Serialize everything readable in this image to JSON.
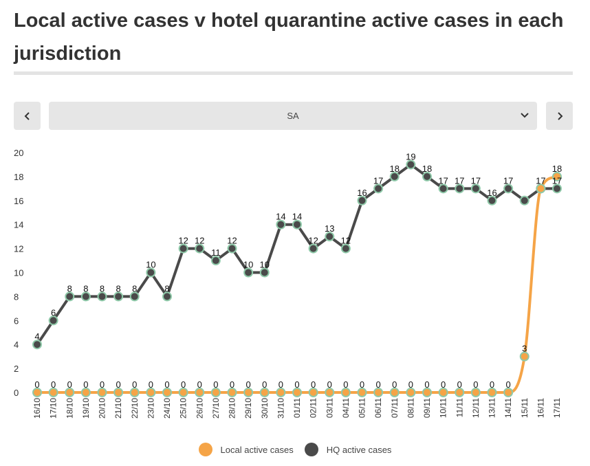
{
  "title": "Local active cases v hotel quarantine active cases in each jurisdiction",
  "selector": {
    "selected": "SA"
  },
  "icons": {
    "prev": "chevron-left-icon",
    "next": "chevron-right-icon",
    "dropdown": "chevron-down-icon"
  },
  "colors": {
    "local": "#f5a447",
    "hq": "#4a4a4a",
    "marker_stroke": "#8fc9a9"
  },
  "legend": {
    "local": "Local active cases",
    "hq": "HQ active cases"
  },
  "chart_data": {
    "type": "line",
    "title": "",
    "xlabel": "",
    "ylabel": "",
    "ylim": [
      0,
      20
    ],
    "yticks": [
      0,
      2,
      4,
      6,
      8,
      10,
      12,
      14,
      16,
      18,
      20
    ],
    "grid": false,
    "legend_position": "bottom",
    "categories": [
      "16/10",
      "17/10",
      "18/10",
      "19/10",
      "20/10",
      "21/10",
      "22/10",
      "23/10",
      "24/10",
      "25/10",
      "26/10",
      "27/10",
      "28/10",
      "29/10",
      "30/10",
      "31/10",
      "01/11",
      "02/11",
      "03/11",
      "04/11",
      "05/11",
      "06/11",
      "07/11",
      "08/11",
      "09/11",
      "10/11",
      "11/11",
      "12/11",
      "13/11",
      "14/11",
      "15/11",
      "16/11",
      "17/11"
    ],
    "series": [
      {
        "name": "Local active cases",
        "values": [
          0,
          0,
          0,
          0,
          0,
          0,
          0,
          0,
          0,
          0,
          0,
          0,
          0,
          0,
          0,
          0,
          0,
          0,
          0,
          0,
          0,
          0,
          0,
          0,
          0,
          0,
          0,
          0,
          0,
          0,
          3,
          17,
          18
        ],
        "labels": [
          "0",
          "0",
          "0",
          "0",
          "0",
          "0",
          "0",
          "0",
          "0",
          "0",
          "0",
          "0",
          "0",
          "0",
          "0",
          "0",
          "0",
          "0",
          "0",
          "0",
          "0",
          "0",
          "0",
          "0",
          "0",
          "0",
          "0",
          "0",
          "0",
          "0",
          "3",
          "",
          "18"
        ]
      },
      {
        "name": "HQ active cases",
        "values": [
          4,
          6,
          8,
          8,
          8,
          8,
          8,
          10,
          8,
          12,
          12,
          11,
          12,
          10,
          10,
          14,
          14,
          12,
          13,
          12,
          16,
          17,
          18,
          19,
          18,
          17,
          17,
          17,
          16,
          17,
          16,
          17,
          17
        ],
        "labels": [
          "4",
          "6",
          "8",
          "8",
          "8",
          "8",
          "8",
          "10",
          "8",
          "12",
          "12",
          "11",
          "12",
          "10",
          "10",
          "14",
          "14",
          "12",
          "13",
          "12",
          "16",
          "17",
          "18",
          "19",
          "18",
          "17",
          "17",
          "17",
          "16",
          "17",
          "",
          "17",
          "17"
        ]
      }
    ]
  }
}
